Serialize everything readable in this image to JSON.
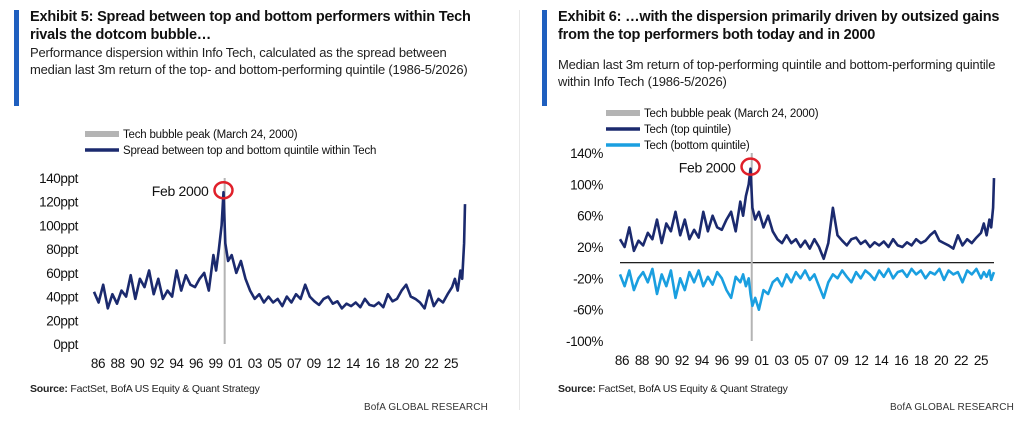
{
  "colors": {
    "navy": "#1b2a6e",
    "light_blue": "#1a9fe0",
    "grey": "#b4b4b4",
    "accent": "#1f5fbf",
    "circle": "#e0202a"
  },
  "left": {
    "title": "Exhibit 5: Spread between top and bottom performers within Tech rivals the dotcom bubble…",
    "subtitle": "Performance dispersion within Info Tech, calculated as the spread between median last 3m return of the top- and bottom-performing quintile (1986-5/2026)",
    "source_label": "Source:",
    "source_text": " FactSet, BofA US Equity & Quant Strategy",
    "brand": "BofA GLOBAL RESEARCH"
  },
  "right": {
    "title": "Exhibit 6: …with the dispersion primarily driven by outsized gains from the top performers both today and in 2000",
    "subtitle": "Median last 3m return of top-performing quintile and bottom-performing quintile within Info Tech (1986-5/2026)",
    "source_label": "Source:",
    "source_text": " FactSet, BofA US Equity & Quant Strategy",
    "brand": "BofA GLOBAL RESEARCH"
  },
  "chart_data": [
    {
      "type": "line",
      "legend": [
        "Tech bubble peak (March 24, 2000)",
        "Spread between top and bottom quintile within Tech"
      ],
      "annotation": "Feb 2000",
      "xticks": [
        "86",
        "88",
        "90",
        "92",
        "94",
        "96",
        "99",
        "01",
        "03",
        "05",
        "07",
        "09",
        "12",
        "14",
        "16",
        "18",
        "20",
        "22",
        "25"
      ],
      "yticks": [
        "0ppt",
        "20ppt",
        "40ppt",
        "60ppt",
        "80ppt",
        "100ppt",
        "120ppt",
        "140ppt"
      ],
      "ylim": [
        0,
        140
      ],
      "xlim": [
        1986.0,
        2026.4
      ],
      "peak_marker_year": 2000.23,
      "series": [
        {
          "x": [
            1986.0,
            1986.5,
            1987.0,
            1987.5,
            1988.0,
            1988.5,
            1989.0,
            1989.5,
            1990.0,
            1990.5,
            1991.0,
            1991.5,
            1992.0,
            1992.5,
            1993.0,
            1993.5,
            1994.0,
            1994.5,
            1995.0,
            1995.5,
            1996.0,
            1996.5,
            1997.0,
            1997.5,
            1998.0,
            1998.5,
            1999.0,
            1999.3,
            1999.6,
            1999.9,
            2000.1,
            2000.3,
            2000.6,
            2001.0,
            2001.5,
            2002.0,
            2002.5,
            2003.0,
            2003.5,
            2004.0,
            2004.5,
            2005.0,
            2005.5,
            2006.0,
            2006.5,
            2007.0,
            2007.5,
            2008.0,
            2008.5,
            2009.0,
            2009.5,
            2010.0,
            2010.5,
            2011.0,
            2011.5,
            2012.0,
            2012.5,
            2013.0,
            2013.5,
            2014.0,
            2014.5,
            2015.0,
            2015.5,
            2016.0,
            2016.5,
            2017.0,
            2017.5,
            2018.0,
            2018.5,
            2019.0,
            2019.5,
            2020.0,
            2020.5,
            2021.0,
            2021.5,
            2022.0,
            2022.5,
            2023.0,
            2023.5,
            2024.0,
            2024.5,
            2025.0,
            2025.3,
            2025.6,
            2025.9,
            2026.1,
            2026.3,
            2026.4
          ],
          "y": [
            44,
            35,
            50,
            30,
            42,
            34,
            45,
            40,
            58,
            38,
            55,
            48,
            62,
            42,
            55,
            38,
            45,
            40,
            62,
            45,
            58,
            50,
            48,
            55,
            60,
            45,
            75,
            62,
            80,
            100,
            128,
            85,
            70,
            75,
            60,
            70,
            55,
            45,
            38,
            42,
            35,
            40,
            35,
            38,
            32,
            40,
            35,
            42,
            38,
            50,
            40,
            36,
            33,
            38,
            40,
            34,
            36,
            30,
            34,
            32,
            35,
            31,
            38,
            33,
            32,
            35,
            31,
            42,
            36,
            38,
            45,
            50,
            40,
            38,
            35,
            30,
            45,
            32,
            38,
            35,
            42,
            48,
            55,
            45,
            62,
            55,
            85,
            118
          ]
        }
      ]
    },
    {
      "type": "line",
      "legend": [
        "Tech bubble peak (March 24, 2000)",
        "Tech (top quintile)",
        "Tech (bottom quintile)"
      ],
      "annotation": "Feb 2000",
      "xticks": [
        "86",
        "88",
        "90",
        "92",
        "94",
        "96",
        "99",
        "01",
        "03",
        "05",
        "07",
        "09",
        "12",
        "14",
        "16",
        "18",
        "20",
        "22",
        "25"
      ],
      "yticks": [
        "-100%",
        "-60%",
        "-20%",
        "20%",
        "60%",
        "100%",
        "140%"
      ],
      "ylim": [
        -100,
        140
      ],
      "xlim": [
        1986.0,
        2026.4
      ],
      "peak_marker_year": 2000.23,
      "series": [
        {
          "name": "Tech (top quintile)",
          "x": [
            1986.0,
            1986.5,
            1987.0,
            1987.5,
            1988.0,
            1988.5,
            1989.0,
            1989.5,
            1990.0,
            1990.5,
            1991.0,
            1991.5,
            1992.0,
            1992.5,
            1993.0,
            1993.5,
            1994.0,
            1994.5,
            1995.0,
            1995.5,
            1996.0,
            1996.5,
            1997.0,
            1997.5,
            1998.0,
            1998.5,
            1999.0,
            1999.3,
            1999.6,
            1999.9,
            2000.1,
            2000.3,
            2000.6,
            2001.0,
            2001.5,
            2002.0,
            2002.5,
            2003.0,
            2003.5,
            2004.0,
            2004.5,
            2005.0,
            2005.5,
            2006.0,
            2006.5,
            2007.0,
            2007.5,
            2008.0,
            2008.5,
            2009.0,
            2009.5,
            2010.0,
            2010.5,
            2011.0,
            2011.5,
            2012.0,
            2012.5,
            2013.0,
            2013.5,
            2014.0,
            2014.5,
            2015.0,
            2015.5,
            2016.0,
            2016.5,
            2017.0,
            2017.5,
            2018.0,
            2018.5,
            2019.0,
            2019.5,
            2020.0,
            2020.5,
            2021.0,
            2021.5,
            2022.0,
            2022.5,
            2023.0,
            2023.5,
            2024.0,
            2024.5,
            2025.0,
            2025.3,
            2025.6,
            2025.9,
            2026.1,
            2026.3,
            2026.4
          ],
          "y": [
            30,
            20,
            45,
            15,
            28,
            22,
            38,
            30,
            55,
            25,
            50,
            40,
            65,
            35,
            55,
            30,
            42,
            32,
            65,
            40,
            60,
            45,
            42,
            55,
            65,
            40,
            78,
            60,
            85,
            100,
            120,
            70,
            55,
            65,
            45,
            60,
            40,
            30,
            25,
            35,
            25,
            30,
            20,
            28,
            18,
            30,
            20,
            5,
            25,
            70,
            35,
            28,
            22,
            30,
            32,
            24,
            28,
            20,
            26,
            22,
            27,
            20,
            30,
            22,
            20,
            26,
            22,
            30,
            25,
            28,
            35,
            40,
            28,
            25,
            22,
            18,
            35,
            22,
            30,
            25,
            32,
            38,
            50,
            35,
            55,
            45,
            70,
            108
          ]
        },
        {
          "name": "Tech (bottom quintile)",
          "x": [
            1986.0,
            1986.5,
            1987.0,
            1987.5,
            1988.0,
            1988.5,
            1989.0,
            1989.5,
            1990.0,
            1990.5,
            1991.0,
            1991.5,
            1992.0,
            1992.5,
            1993.0,
            1993.5,
            1994.0,
            1994.5,
            1995.0,
            1995.5,
            1996.0,
            1996.5,
            1997.0,
            1997.5,
            1998.0,
            1998.5,
            1999.0,
            1999.3,
            1999.6,
            1999.9,
            2000.1,
            2000.3,
            2000.6,
            2001.0,
            2001.5,
            2002.0,
            2002.5,
            2003.0,
            2003.5,
            2004.0,
            2004.5,
            2005.0,
            2005.5,
            2006.0,
            2006.5,
            2007.0,
            2007.5,
            2008.0,
            2008.5,
            2009.0,
            2009.5,
            2010.0,
            2010.5,
            2011.0,
            2011.5,
            2012.0,
            2012.5,
            2013.0,
            2013.5,
            2014.0,
            2014.5,
            2015.0,
            2015.5,
            2016.0,
            2016.5,
            2017.0,
            2017.5,
            2018.0,
            2018.5,
            2019.0,
            2019.5,
            2020.0,
            2020.5,
            2021.0,
            2021.5,
            2022.0,
            2022.5,
            2023.0,
            2023.5,
            2024.0,
            2024.5,
            2025.0,
            2025.3,
            2025.6,
            2025.9,
            2026.1,
            2026.3,
            2026.4
          ],
          "y": [
            -15,
            -30,
            -10,
            -35,
            -20,
            -12,
            -25,
            -8,
            -40,
            -15,
            -30,
            -10,
            -45,
            -20,
            -35,
            -12,
            -25,
            -10,
            -30,
            -18,
            -28,
            -12,
            -20,
            -35,
            -45,
            -18,
            -25,
            -15,
            -30,
            -20,
            -40,
            -55,
            -45,
            -60,
            -35,
            -40,
            -25,
            -20,
            -30,
            -15,
            -25,
            -12,
            -20,
            -10,
            -22,
            -15,
            -30,
            -45,
            -25,
            -15,
            -20,
            -10,
            -18,
            -25,
            -12,
            -20,
            -10,
            -15,
            -22,
            -10,
            -18,
            -8,
            -20,
            -12,
            -10,
            -18,
            -8,
            -15,
            -10,
            -20,
            -12,
            -15,
            -8,
            -22,
            -10,
            -15,
            -12,
            -25,
            -10,
            -15,
            -8,
            -20,
            -12,
            -18,
            -10,
            -22,
            -15,
            -12
          ]
        }
      ]
    }
  ]
}
